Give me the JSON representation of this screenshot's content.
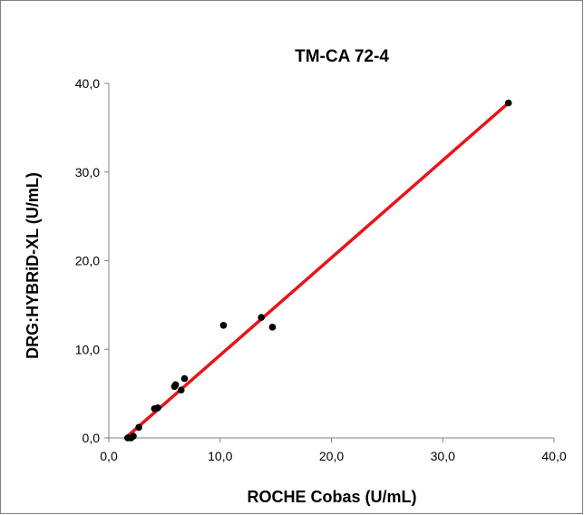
{
  "chart_data": {
    "type": "scatter",
    "title": "TM-CA 72-4",
    "xlabel": "ROCHE Cobas (U/mL)",
    "ylabel": "DRG:HYBRiD-XL (U/mL)",
    "xlim": [
      0,
      40
    ],
    "ylim": [
      0,
      40
    ],
    "x_ticks": [
      "0,0",
      "10,0",
      "20,0",
      "30,0",
      "40,0"
    ],
    "y_ticks": [
      "0,0",
      "10,0",
      "20,0",
      "30,0",
      "40,0"
    ],
    "grid": false,
    "legend": "none",
    "series": [
      {
        "values": [
          {
            "x": 1.7,
            "y": 0.0
          },
          {
            "x": 2.0,
            "y": 0.0
          },
          {
            "x": 2.2,
            "y": 0.2
          },
          {
            "x": 2.7,
            "y": 1.2
          },
          {
            "x": 4.1,
            "y": 3.3
          },
          {
            "x": 4.4,
            "y": 3.4
          },
          {
            "x": 5.9,
            "y": 5.8
          },
          {
            "x": 6.0,
            "y": 6.0
          },
          {
            "x": 6.5,
            "y": 5.4
          },
          {
            "x": 6.8,
            "y": 6.7
          },
          {
            "x": 10.3,
            "y": 12.7
          },
          {
            "x": 13.7,
            "y": 13.6
          },
          {
            "x": 14.7,
            "y": 12.5
          },
          {
            "x": 35.9,
            "y": 37.8
          }
        ],
        "color": "#000000"
      }
    ],
    "trendline": {
      "from": {
        "x": 1.5,
        "y": 0.0
      },
      "to": {
        "x": 35.9,
        "y": 37.8
      },
      "color": "#e8141b"
    }
  }
}
